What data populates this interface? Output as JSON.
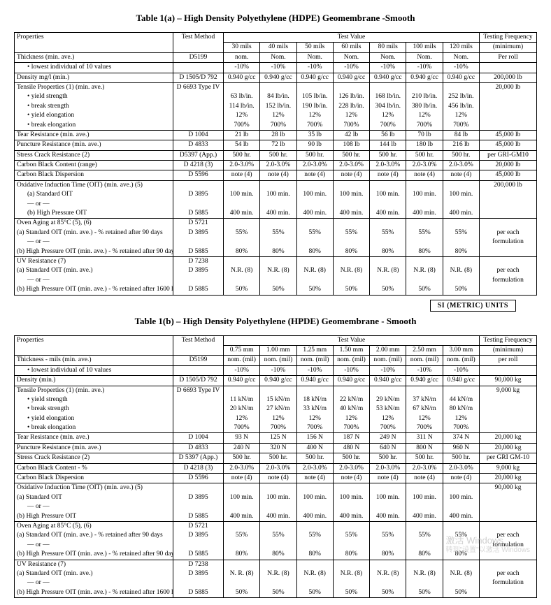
{
  "titles": {
    "a": "Table 1(a) – High Density Polyethylene (HDPE) Geomembrane -Smooth",
    "b": "Table 1(b) – High Density Polyethylene (HPDE) Geomembrane - Smooth",
    "si": "SI (METRIC) UNITS"
  },
  "hdr": {
    "properties": "Properties",
    "method": "Test Method",
    "testvalue": "Test Value",
    "freq": "Testing Frequency",
    "min": "(minimum)"
  },
  "a": {
    "cols": [
      "30 mils",
      "40 mils",
      "50 mils",
      "60 mils",
      "80 mils",
      "100 mils",
      "120 mils"
    ],
    "rows": [
      {
        "p": "Thickness (min. ave.)",
        "m": "D5199",
        "v": [
          "nom.",
          "Nom.",
          "Nom.",
          "Nom.",
          "Nom.",
          "Nom.",
          "Nom."
        ],
        "f": "Per roll"
      },
      {
        "p": "lowest individual of 10 values",
        "indent": true,
        "bullet": true,
        "m": "",
        "v": [
          "-10%",
          "-10%",
          "-10%",
          "-10%",
          "-10%",
          "-10%",
          "-10%"
        ],
        "f": ""
      },
      {
        "p": "Density mg/l (min.)",
        "m": "D 1505/D 792",
        "v": [
          "0.940 g/cc",
          "0.940 g/cc",
          "0.940 g/cc",
          "0.940 g/cc",
          "0.940 g/cc",
          "0.940 g/cc",
          "0.940 g/cc"
        ],
        "f": "200,000 lb"
      },
      {
        "p": "Tensile Properties (1) (min. ave.)",
        "m": "D 6693 Type IV",
        "v": [
          "",
          "",
          "",
          "",
          "",
          "",
          ""
        ],
        "f": "20,000 lb",
        "noBottom": true
      },
      {
        "p": "yield strength",
        "indent": true,
        "bullet": true,
        "m": "",
        "v": [
          "63 lb/in.",
          "84 lb/in.",
          "105 lb/in.",
          "126 lb/in.",
          "168 lb/in.",
          "210 lb/in.",
          "252 lb/in."
        ],
        "f": "",
        "noTop": true,
        "noBottom": true
      },
      {
        "p": "break strength",
        "indent": true,
        "bullet": true,
        "m": "",
        "v": [
          "114 lb/in.",
          "152 lb/in.",
          "190 lb/in.",
          "228 lb/in.",
          "304 lb/in.",
          "380 lb/in.",
          "456 lb/in."
        ],
        "f": "",
        "noTop": true,
        "noBottom": true
      },
      {
        "p": "yield elongation",
        "indent": true,
        "bullet": true,
        "m": "",
        "v": [
          "12%",
          "12%",
          "12%",
          "12%",
          "12%",
          "12%",
          "12%"
        ],
        "f": "",
        "noTop": true,
        "noBottom": true
      },
      {
        "p": "break elongation",
        "indent": true,
        "bullet": true,
        "m": "",
        "v": [
          "700%",
          "700%",
          "700%",
          "700%",
          "700%",
          "700%",
          "700%"
        ],
        "f": "",
        "noTop": true
      },
      {
        "p": "Tear Resistance (min. ave.)",
        "m": "D 1004",
        "v": [
          "21 lb",
          "28 lb",
          "35 lb",
          "42 lb",
          "56 lb",
          "70 lb",
          "84 lb"
        ],
        "f": "45,000 lb"
      },
      {
        "p": "Puncture Resistance (min. ave.)",
        "m": "D 4833",
        "v": [
          "54 lb",
          "72 lb",
          "90 lb",
          "108 lb",
          "144 lb",
          "180 lb",
          "216 lb"
        ],
        "f": "45,000 lb"
      },
      {
        "p": "Stress Crack Resistance (2)",
        "m": "D5397 (App.)",
        "v": [
          "500 hr.",
          "500 hr.",
          "500 hr.",
          "500 hr.",
          "500 hr.",
          "500 hr.",
          "500 hr."
        ],
        "f": "per GRI-GM10"
      },
      {
        "p": "Carbon Black Content (range)",
        "m": "D 4218 (3)",
        "v": [
          "2.0-3.0%",
          "2.0-3.0%",
          "2.0-3.0%",
          "2.0-3.0%",
          "2.0-3.0%",
          "2.0-3.0%",
          "2.0-3.0%"
        ],
        "f": "20,000 lb"
      },
      {
        "p": "Carbon Black Dispersion",
        "m": "D 5596",
        "v": [
          "note (4)",
          "note (4)",
          "note (4)",
          "note (4)",
          "note (4)",
          "note (4)",
          "note (4)"
        ],
        "f": "45,000 lb"
      },
      {
        "p": "Oxidative Induction Time (OIT) (min. ave.) (5)",
        "m": "",
        "v": [
          "",
          "",
          "",
          "",
          "",
          "",
          ""
        ],
        "f": "200,000 lb",
        "noBottom": true
      },
      {
        "p": "(a)    Standard OIT",
        "indent": true,
        "m": "D 3895",
        "v": [
          "100 min.",
          "100 min.",
          "100 min.",
          "100 min.",
          "100 min.",
          "100 min.",
          "100 min."
        ],
        "f": "",
        "noTop": true,
        "noBottom": true
      },
      {
        "p": "        — or —",
        "indent": true,
        "m": "",
        "v": [
          "",
          "",
          "",
          "",
          "",
          "",
          ""
        ],
        "f": "",
        "noTop": true,
        "noBottom": true
      },
      {
        "p": "(b)   High Pressure OIT",
        "indent": true,
        "m": "D 5885",
        "v": [
          "400 min.",
          "400 min.",
          "400 min.",
          "400 min.",
          "400 min.",
          "400 min.",
          "400 min."
        ],
        "f": "",
        "noTop": true
      },
      {
        "p": "Oven Aging at 85°C (5), (6)",
        "m": "D 5721",
        "v": [
          "",
          "",
          "",
          "",
          "",
          "",
          ""
        ],
        "f": "",
        "noBottom": true
      },
      {
        "p": "(a) Standard OIT (min. ave.) - % retained after 90 days",
        "m": "D 3895",
        "v": [
          "55%",
          "55%",
          "55%",
          "55%",
          "55%",
          "55%",
          "55%"
        ],
        "f": "per each",
        "noTop": true,
        "noBottom": true
      },
      {
        "p": "        — or —",
        "indent": true,
        "m": "",
        "v": [
          "",
          "",
          "",
          "",
          "",
          "",
          ""
        ],
        "f": "formulation",
        "noTop": true,
        "noBottom": true
      },
      {
        "p": "(b) High Pressure OIT (min. ave.) - % retained after 90 days",
        "m": "D 5885",
        "v": [
          "80%",
          "80%",
          "80%",
          "80%",
          "80%",
          "80%",
          "80%"
        ],
        "f": "",
        "noTop": true
      },
      {
        "p": "UV Resistance (7)",
        "m": "D 7238",
        "v": [
          "",
          "",
          "",
          "",
          "",
          "",
          ""
        ],
        "f": "",
        "noBottom": true
      },
      {
        "p": "(a) Standard OIT (min. ave.)",
        "m": "D 3895",
        "v": [
          "N.R. (8)",
          "N.R. (8)",
          "N.R. (8)",
          "N.R. (8)",
          "N.R. (8)",
          "N.R. (8)",
          "N.R. (8)"
        ],
        "f": "per each",
        "noTop": true,
        "noBottom": true
      },
      {
        "p": "        — or —",
        "indent": true,
        "m": "",
        "v": [
          "",
          "",
          "",
          "",
          "",
          "",
          ""
        ],
        "f": "formulation",
        "noTop": true,
        "noBottom": true
      },
      {
        "p": "(b) High Pressure OIT (min. ave.) - % retained after 1600 hrs (9)",
        "m": "D 5885",
        "v": [
          "50%",
          "50%",
          "50%",
          "50%",
          "50%",
          "50%",
          "50%"
        ],
        "f": "",
        "noTop": true
      }
    ]
  },
  "b": {
    "cols": [
      "0.75 mm",
      "1.00 mm",
      "1.25 mm",
      "1.50 mm",
      "2.00 mm",
      "2.50 mm",
      "3.00 mm"
    ],
    "rows": [
      {
        "p": "Thickness - mils (min. ave.)",
        "m": "D5199",
        "v": [
          "nom. (mil)",
          "nom. (mil)",
          "nom. (mil)",
          "nom. (mil)",
          "nom. (mil)",
          "nom. (mil)",
          "nom. (mil)"
        ],
        "f": "per roll"
      },
      {
        "p": "lowest individual of 10 values",
        "indent": true,
        "bullet": true,
        "m": "",
        "v": [
          "-10%",
          "-10%",
          "-10%",
          "-10%",
          "-10%",
          "-10%",
          "-10%"
        ],
        "f": ""
      },
      {
        "p": "Density (min.)",
        "m": "D 1505/D 792",
        "v": [
          "0.940 g/cc",
          "0.940 g/cc",
          "0.940 g/cc",
          "0.940 g/cc",
          "0.940 g/cc",
          "0.940 g/cc",
          "0.940 g/cc"
        ],
        "f": "90,000 kg"
      },
      {
        "p": "Tensile Properties (1) (min. ave.)",
        "m": "D 6693 Type IV",
        "v": [
          "",
          "",
          "",
          "",
          "",
          "",
          ""
        ],
        "f": "9,000 kg",
        "noBottom": true
      },
      {
        "p": "yield strength",
        "indent": true,
        "bullet": true,
        "m": "",
        "v": [
          "11 kN/m",
          "15 kN/m",
          "18 kN/m",
          "22 kN/m",
          "29 kN/m",
          "37 kN/m",
          "44 kN/m"
        ],
        "f": "",
        "noTop": true,
        "noBottom": true
      },
      {
        "p": "break strength",
        "indent": true,
        "bullet": true,
        "m": "",
        "v": [
          "20 kN/m",
          "27 kN/m",
          "33 kN/m",
          "40 kN/m",
          "53 kN/m",
          "67 kN/m",
          "80 kN/m"
        ],
        "f": "",
        "noTop": true,
        "noBottom": true
      },
      {
        "p": "yield elongation",
        "indent": true,
        "bullet": true,
        "m": "",
        "v": [
          "12%",
          "12%",
          "12%",
          "12%",
          "12%",
          "12%",
          "12%"
        ],
        "f": "",
        "noTop": true,
        "noBottom": true
      },
      {
        "p": "break elongation",
        "indent": true,
        "bullet": true,
        "m": "",
        "v": [
          "700%",
          "700%",
          "700%",
          "700%",
          "700%",
          "700%",
          "700%"
        ],
        "f": "",
        "noTop": true
      },
      {
        "p": "Tear Resistance (min. ave.)",
        "m": "D 1004",
        "v": [
          "93 N",
          "125 N",
          "156 N",
          "187 N",
          "249 N",
          "311 N",
          "374 N"
        ],
        "f": "20,000 kg"
      },
      {
        "p": "Puncture Resistance (min. ave.)",
        "m": "D 4833",
        "v": [
          "240 N",
          "320 N",
          "400 N",
          "480 N",
          "640 N",
          "800 N",
          "960 N"
        ],
        "f": "20,000 kg"
      },
      {
        "p": "Stress Crack Resistance (2)",
        "m": "D 5397 (App.)",
        "v": [
          "500 hr.",
          "500 hr.",
          "500 hr.",
          "500 hr.",
          "500 hr.",
          "500 hr.",
          "500 hr."
        ],
        "f": "per GRI GM-10"
      },
      {
        "p": "Carbon Black Content - %",
        "m": "D 4218 (3)",
        "v": [
          "2.0-3.0%",
          "2.0-3.0%",
          "2.0-3.0%",
          "2.0-3.0%",
          "2.0-3.0%",
          "2.0-3.0%",
          "2.0-3.0%"
        ],
        "f": "9,000 kg"
      },
      {
        "p": "Carbon Black Dispersion",
        "m": "D 5596",
        "v": [
          "note (4)",
          "note (4)",
          "note (4)",
          "note (4)",
          "note (4)",
          "note (4)",
          "note (4)"
        ],
        "f": "20,000 kg"
      },
      {
        "p": "Oxidative Induction Time (OIT) (min. ave.) (5)",
        "m": "",
        "v": [
          "",
          "",
          "",
          "",
          "",
          "",
          ""
        ],
        "f": "90,000 kg",
        "noBottom": true
      },
      {
        "p": "(a) Standard OIT",
        "m": "D 3895",
        "v": [
          "100 min.",
          "100 min.",
          "100 min.",
          "100 min.",
          "100 min.",
          "100 min.",
          "100 min."
        ],
        "f": "",
        "noTop": true,
        "noBottom": true
      },
      {
        "p": "        — or —",
        "indent": true,
        "m": "",
        "v": [
          "",
          "",
          "",
          "",
          "",
          "",
          ""
        ],
        "f": "",
        "noTop": true,
        "noBottom": true
      },
      {
        "p": "(b) High Pressure OIT",
        "m": "D 5885",
        "v": [
          "400 min.",
          "400 min.",
          "400 min.",
          "400 min.",
          "400 min.",
          "400 min.",
          "400 min."
        ],
        "f": "",
        "noTop": true
      },
      {
        "p": "Oven Aging at 85°C (5), (6)",
        "m": "D 5721",
        "v": [
          "",
          "",
          "",
          "",
          "",
          "",
          ""
        ],
        "f": "",
        "noBottom": true
      },
      {
        "p": "(a) Standard OIT (min. ave.) - % retained after 90 days",
        "m": "D 3895",
        "v": [
          "55%",
          "55%",
          "55%",
          "55%",
          "55%",
          "55%",
          "55%"
        ],
        "f": "per each",
        "noTop": true,
        "noBottom": true
      },
      {
        "p": "        — or —",
        "indent": true,
        "m": "",
        "v": [
          "",
          "",
          "",
          "",
          "",
          "",
          ""
        ],
        "f": "formulation",
        "noTop": true,
        "noBottom": true
      },
      {
        "p": "(b) High Pressure OIT (min. ave.) - % retained after 90 days",
        "m": "D 5885",
        "v": [
          "80%",
          "80%",
          "80%",
          "80%",
          "80%",
          "80%",
          "80%"
        ],
        "f": "",
        "noTop": true
      },
      {
        "p": "UV Resistance (7)",
        "m": "D 7238",
        "v": [
          "",
          "",
          "",
          "",
          "",
          "",
          ""
        ],
        "f": "",
        "noBottom": true
      },
      {
        "p": "(a) Standard OIT (min. ave.)",
        "m": "D 3895",
        "v": [
          "N. R. (8)",
          "N.R. (8)",
          "N.R. (8)",
          "N.R. (8)",
          "N.R. (8)",
          "N.R. (8)",
          "N.R. (8)"
        ],
        "f": "per each",
        "noTop": true,
        "noBottom": true
      },
      {
        "p": "        — or —",
        "indent": true,
        "m": "",
        "v": [
          "",
          "",
          "",
          "",
          "",
          "",
          ""
        ],
        "f": "formulation",
        "noTop": true,
        "noBottom": true
      },
      {
        "p": "(b) High Pressure OIT (min. ave.) - % retained after 1600 hrs (9)",
        "m": "D 5885",
        "v": [
          "50%",
          "50%",
          "50%",
          "50%",
          "50%",
          "50%",
          "50%"
        ],
        "f": "",
        "noTop": true
      }
    ]
  },
  "wm": {
    "main": "激活 Windows",
    "sub": "转到\"设置\"以激活 Windows"
  }
}
